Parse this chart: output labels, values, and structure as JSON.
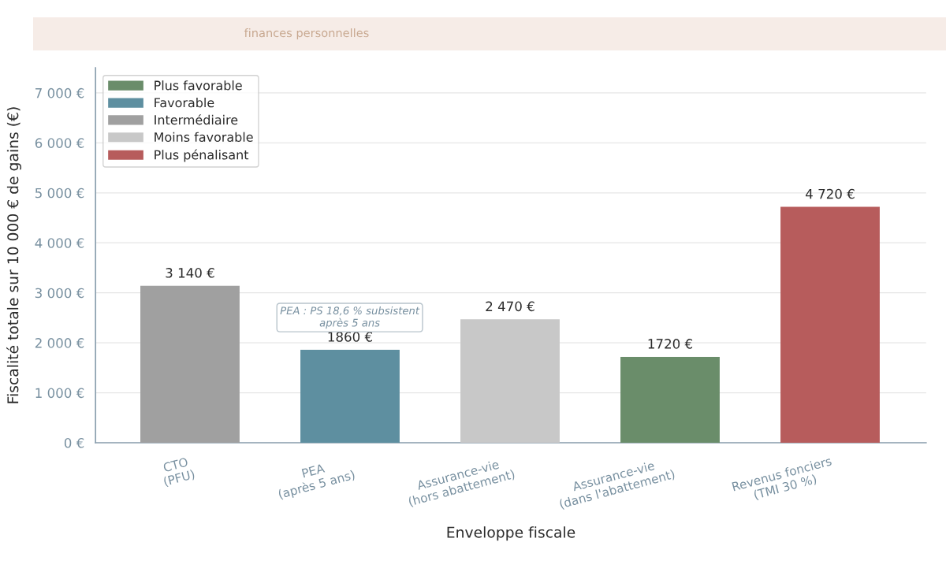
{
  "chart_data": {
    "type": "bar",
    "subtitle": "finances personnelles",
    "xlabel": "Enveloppe fiscale",
    "ylabel": "Fiscalité totale sur 10 000 € de gains (€)",
    "categories": [
      "CTO\n(PFU)",
      "PEA\n(après 5 ans)",
      "Assurance-vie\n(hors abattement)",
      "Assurance-vie\n(dans l'abattement)",
      "Revenus fonciers\n(TMI 30 %)"
    ],
    "series": [
      {
        "name": "Plus favorable",
        "color": "#6a8d6a",
        "values": [
          null,
          null,
          null,
          1720,
          null
        ],
        "value_labels": [
          null,
          null,
          null,
          "1720 €",
          null
        ]
      },
      {
        "name": "Favorable",
        "color": "#5e8fa0",
        "values": [
          null,
          1860,
          null,
          null,
          null
        ],
        "value_labels": [
          null,
          "1860 €",
          null,
          null,
          null
        ]
      },
      {
        "name": "Intermédiaire",
        "color": "#a0a0a0",
        "values": [
          3140,
          null,
          null,
          null,
          null
        ],
        "value_labels": [
          "3 140 €",
          null,
          null,
          null,
          null
        ]
      },
      {
        "name": "Moins favorable",
        "color": "#c8c8c8",
        "values": [
          null,
          null,
          2470,
          null,
          null
        ],
        "value_labels": [
          null,
          null,
          "2 470 €",
          null,
          null
        ]
      },
      {
        "name": "Plus pénalisant",
        "color": "#b75c5c",
        "values": [
          null,
          null,
          null,
          null,
          4720
        ],
        "value_labels": [
          null,
          null,
          null,
          null,
          "4 720 €"
        ]
      }
    ],
    "ylim": [
      0,
      7500
    ],
    "yticks": [
      {
        "value": 0,
        "label": "0 €"
      },
      {
        "value": 1000,
        "label": "1 000 €"
      },
      {
        "value": 2000,
        "label": "2 000 €"
      },
      {
        "value": 3000,
        "label": "3 000 €"
      },
      {
        "value": 4000,
        "label": "4 000 €"
      },
      {
        "value": 5000,
        "label": "5 000 €"
      },
      {
        "value": 6000,
        "label": "6 000 €"
      },
      {
        "value": 7000,
        "label": "7 000 €"
      }
    ],
    "annotations": [
      "PEA : PS 18,6 % subsistent\naprès 5 ans"
    ],
    "grid": "y",
    "legend": "top left"
  }
}
